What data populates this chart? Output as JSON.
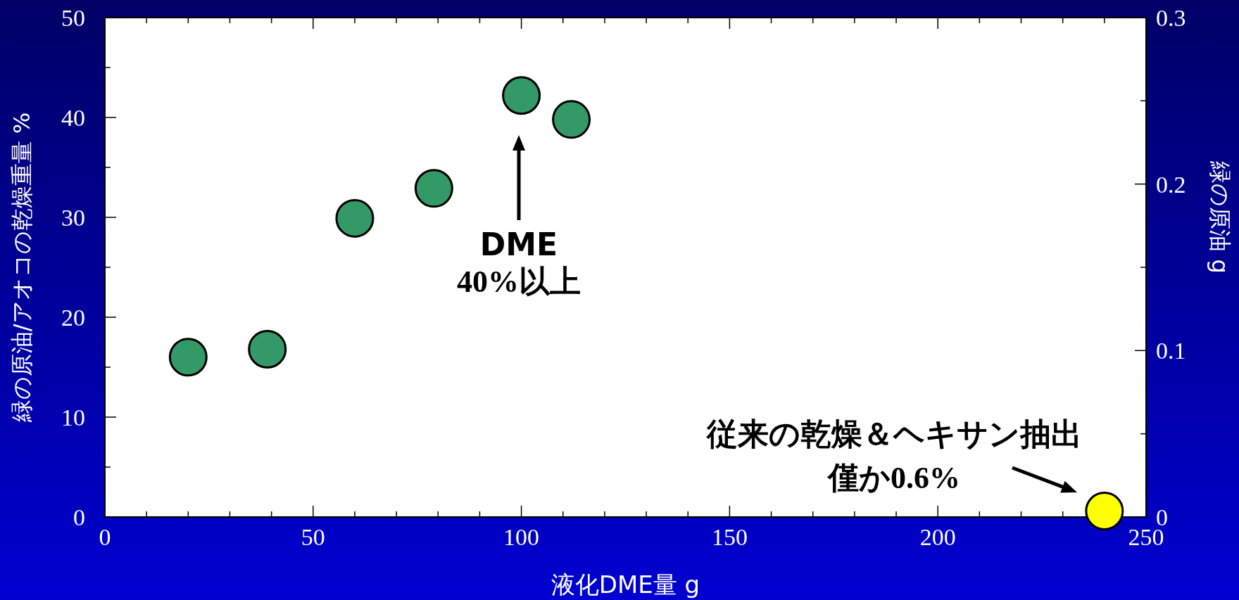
{
  "chart_data": {
    "type": "scatter",
    "xlabel": "液化DME量 g",
    "ylabel": "緑の原油/アオコの乾燥重量 %",
    "y2label": "緑の原油 g",
    "x": [
      20,
      39,
      60,
      79,
      100,
      112,
      240
    ],
    "series": [
      {
        "values": [
          16,
          16.8,
          29.9,
          32.9,
          42.2,
          39.8,
          0.6
        ],
        "colors": [
          "#339966",
          "#339966",
          "#339966",
          "#339966",
          "#339966",
          "#339966",
          "#ffff00"
        ]
      }
    ],
    "marker": "circle",
    "grid": false,
    "xlim": [
      0,
      250
    ],
    "ylim": [
      0,
      50
    ],
    "y2lim": [
      0,
      0.3
    ],
    "xticks": [
      0,
      {
        "value": 10,
        "label": null
      },
      {
        "value": 20,
        "label": null
      },
      {
        "value": 30,
        "label": null
      },
      {
        "value": 40,
        "label": null
      },
      50,
      {
        "value": 60,
        "label": null
      },
      {
        "value": 70,
        "label": null
      },
      {
        "value": 80,
        "label": null
      },
      {
        "value": 90,
        "label": null
      },
      100,
      {
        "value": 110,
        "label": null
      },
      {
        "value": 120,
        "label": null
      },
      {
        "value": 130,
        "label": null
      },
      {
        "value": 140,
        "label": null
      },
      150,
      {
        "value": 160,
        "label": null
      },
      {
        "value": 170,
        "label": null
      },
      {
        "value": 180,
        "label": null
      },
      {
        "value": 190,
        "label": null
      },
      200,
      {
        "value": 210,
        "label": null
      },
      {
        "value": 220,
        "label": null
      },
      {
        "value": 230,
        "label": null
      },
      {
        "value": 240,
        "label": null
      },
      250
    ],
    "yticks": [
      0,
      {
        "value": 5,
        "label": null
      },
      10,
      {
        "value": 15,
        "label": null
      },
      20,
      {
        "value": 25,
        "label": null
      },
      30,
      {
        "value": 35,
        "label": null
      },
      40,
      {
        "value": 45,
        "label": null
      },
      50
    ],
    "y2ticks": [
      0,
      {
        "value": 0.05,
        "label": null
      },
      0.1,
      {
        "value": 0.15,
        "label": null
      },
      0.2,
      {
        "value": 0.25,
        "label": null
      },
      0.3
    ],
    "annotations": [
      "DME",
      "40%以上",
      "従来の乾燥＆ヘキサン抽出",
      "僅か0.6%"
    ]
  }
}
